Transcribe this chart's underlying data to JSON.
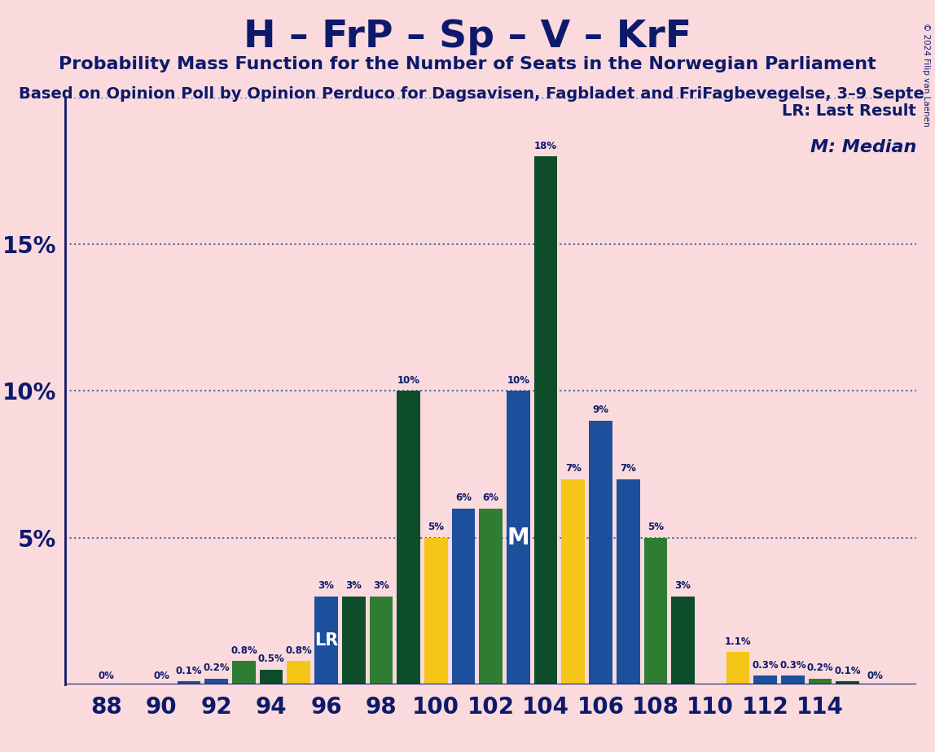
{
  "title": "H – FrP – Sp – V – KrF",
  "subtitle": "Probability Mass Function for the Number of Seats in the Norwegian Parliament",
  "subtitle2": "Based on Opinion Poll by Opinion Perduco for Dagsavisen, Fagbladet and FriFagbevegelse, 3–9 Septe",
  "copyright": "© 2024 Filip van Laenen",
  "background_color": "#fadadd",
  "text_color": "#0d1a6b",
  "bars": [
    {
      "seat": 88,
      "pct": 0.0,
      "color": "#1c4f9c",
      "label": "0%"
    },
    {
      "seat": 90,
      "pct": 0.0,
      "color": "#1c4f9c",
      "label": "0%"
    },
    {
      "seat": 91,
      "pct": 0.1,
      "color": "#1c4f9c",
      "label": "0.1%"
    },
    {
      "seat": 92,
      "pct": 0.2,
      "color": "#1c4f9c",
      "label": "0.2%"
    },
    {
      "seat": 93,
      "pct": 0.8,
      "color": "#2e7d32",
      "label": "0.8%"
    },
    {
      "seat": 94,
      "pct": 0.5,
      "color": "#0d4d2a",
      "label": "0.5%"
    },
    {
      "seat": 95,
      "pct": 0.8,
      "color": "#f5c518",
      "label": "0.8%"
    },
    {
      "seat": 96,
      "pct": 3.0,
      "color": "#1c4f9c",
      "label": "3%",
      "annotation": "LR"
    },
    {
      "seat": 97,
      "pct": 3.0,
      "color": "#0d4d2a",
      "label": "3%"
    },
    {
      "seat": 98,
      "pct": 3.0,
      "color": "#2e7d32",
      "label": "3%"
    },
    {
      "seat": 99,
      "pct": 10.0,
      "color": "#0d4d2a",
      "label": "10%"
    },
    {
      "seat": 100,
      "pct": 5.0,
      "color": "#f5c518",
      "label": "5%"
    },
    {
      "seat": 101,
      "pct": 6.0,
      "color": "#1c4f9c",
      "label": "6%"
    },
    {
      "seat": 102,
      "pct": 6.0,
      "color": "#2e7d32",
      "label": "6%"
    },
    {
      "seat": 103,
      "pct": 10.0,
      "color": "#1c4f9c",
      "label": "10%",
      "annotation": "M"
    },
    {
      "seat": 104,
      "pct": 18.0,
      "color": "#0d4d2a",
      "label": "18%"
    },
    {
      "seat": 105,
      "pct": 7.0,
      "color": "#f5c518",
      "label": "7%"
    },
    {
      "seat": 106,
      "pct": 9.0,
      "color": "#1c4f9c",
      "label": "9%"
    },
    {
      "seat": 107,
      "pct": 7.0,
      "color": "#1c4f9c",
      "label": "7%"
    },
    {
      "seat": 108,
      "pct": 5.0,
      "color": "#2e7d32",
      "label": "5%"
    },
    {
      "seat": 109,
      "pct": 3.0,
      "color": "#0d4d2a",
      "label": "3%"
    },
    {
      "seat": 111,
      "pct": 1.1,
      "color": "#f5c518",
      "label": "1.1%"
    },
    {
      "seat": 112,
      "pct": 0.3,
      "color": "#1c4f9c",
      "label": "0.3%"
    },
    {
      "seat": 113,
      "pct": 0.3,
      "color": "#1c4f9c",
      "label": "0.3%"
    },
    {
      "seat": 114,
      "pct": 0.2,
      "color": "#2e7d32",
      "label": "0.2%"
    },
    {
      "seat": 115,
      "pct": 0.1,
      "color": "#0d4d2a",
      "label": "0.1%"
    },
    {
      "seat": 116,
      "pct": 0.0,
      "color": "#0d4d2a",
      "label": "0%"
    }
  ],
  "lr_annotation_seat": 96,
  "median_annotation_seat": 103,
  "ylim": [
    0,
    20
  ],
  "bar_width": 0.85,
  "xtick_positions": [
    88,
    90,
    92,
    94,
    96,
    98,
    100,
    102,
    104,
    106,
    108,
    110,
    112,
    114
  ],
  "xtick_labels": [
    "88",
    "90",
    "92",
    "94",
    "96",
    "98",
    "100",
    "102",
    "104",
    "106",
    "108",
    "110",
    "112",
    "114"
  ]
}
